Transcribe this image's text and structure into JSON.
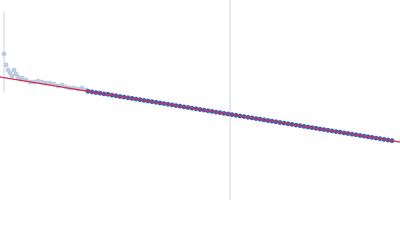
{
  "chart_data": {
    "type": "scatter",
    "xlim": [
      0,
      400
    ],
    "ylim": [
      0,
      200
    ],
    "reference_x": 230,
    "reference_color": "#c8d2e6",
    "series": [
      {
        "type": "scatter",
        "color": "#bccbe2",
        "x": [
          4,
          6,
          8,
          10,
          12,
          14,
          16,
          18,
          20,
          22,
          26,
          30,
          34,
          38,
          42,
          46,
          50,
          54,
          58,
          62,
          66,
          70,
          74,
          78,
          82,
          86
        ],
        "values": [
          146,
          135,
          130,
          127,
          124,
          130,
          126,
          123,
          121,
          122,
          120,
          118,
          118,
          119,
          118,
          117,
          117,
          116,
          114,
          115,
          113,
          112,
          112,
          111,
          112,
          110
        ]
      },
      {
        "type": "scatter",
        "color": "#3a62b5",
        "x": [
          88,
          92,
          96,
          100,
          104,
          108,
          112,
          116,
          120,
          124,
          128,
          132,
          136,
          140,
          144,
          148,
          152,
          156,
          160,
          164,
          168,
          172,
          176,
          180,
          184,
          188,
          192,
          196,
          200,
          204,
          208,
          212,
          216,
          220,
          224,
          228,
          232,
          236,
          240,
          244,
          248,
          252,
          256,
          260,
          264,
          268,
          272,
          276,
          280,
          284,
          288,
          292,
          296,
          300,
          304,
          308,
          312,
          316,
          320,
          324,
          328,
          332,
          336,
          340,
          344,
          348,
          352,
          356,
          360,
          364,
          368,
          372,
          376,
          380,
          384,
          388,
          392
        ],
        "values": [
          108.7,
          108.1,
          107.4,
          106.8,
          106.1,
          105.7,
          104.8,
          104.2,
          103.5,
          102.9,
          102.2,
          101.6,
          100.9,
          100.3,
          99.6,
          99.0,
          98.3,
          97.7,
          97.0,
          96.4,
          95.7,
          95.1,
          94.4,
          93.8,
          93.1,
          92.5,
          91.8,
          91.2,
          90.5,
          89.9,
          89.2,
          88.6,
          87.9,
          87.3,
          86.6,
          86.0,
          85.3,
          84.7,
          84.0,
          83.4,
          82.7,
          82.1,
          81.4,
          80.8,
          80.1,
          79.5,
          78.8,
          78.2,
          77.5,
          76.9,
          76.2,
          75.6,
          74.9,
          74.3,
          73.6,
          73.0,
          72.3,
          71.7,
          71.0,
          70.4,
          69.7,
          69.1,
          68.4,
          67.8,
          67.1,
          66.5,
          65.8,
          65.2,
          64.5,
          63.9,
          63.2,
          62.6,
          61.9,
          61.3,
          60.6,
          60.0,
          59.3
        ]
      },
      {
        "type": "line",
        "color": "#d0304f",
        "x": [
          0,
          400
        ],
        "values": [
          123,
          58
        ]
      }
    ]
  }
}
